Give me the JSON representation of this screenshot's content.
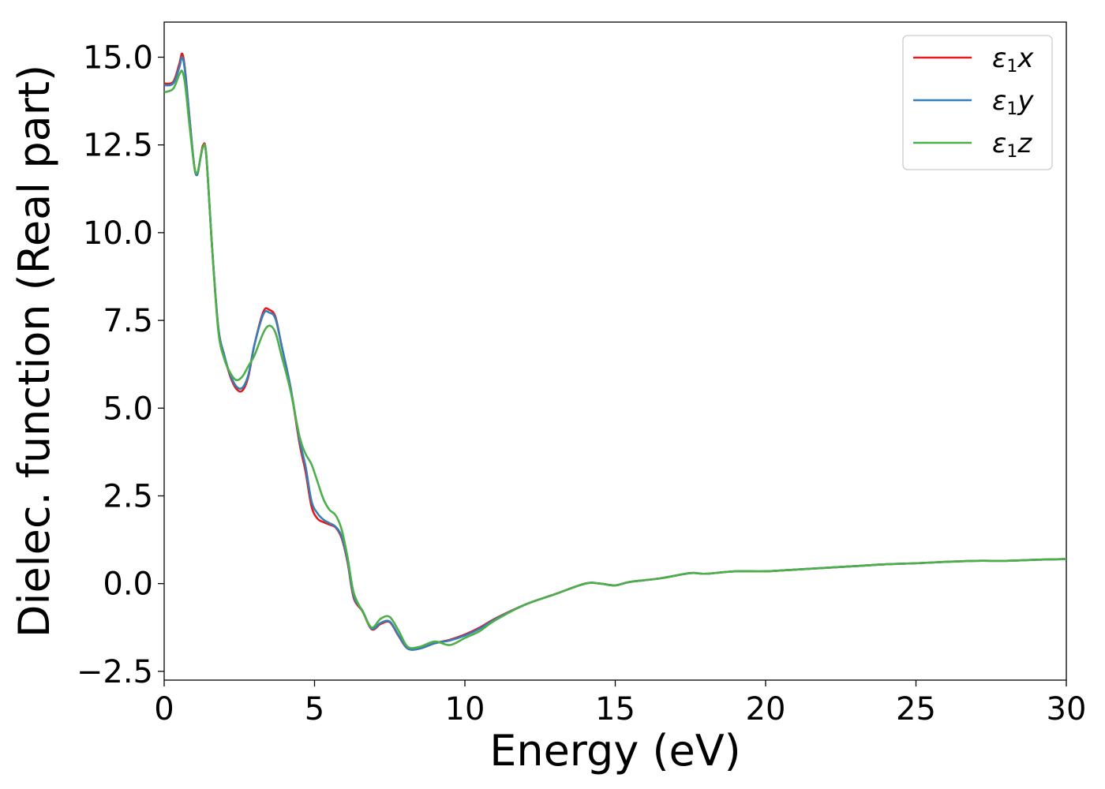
{
  "chart_data": {
    "type": "line",
    "title": "",
    "xlabel": "Energy (eV)",
    "ylabel": "Dielec. function (Real part)",
    "xlim": [
      0,
      30
    ],
    "ylim": [
      -2.75,
      16.0
    ],
    "xticks": [
      0,
      5,
      10,
      15,
      20,
      25,
      30
    ],
    "xtick_labels": [
      "0",
      "5",
      "10",
      "15",
      "20",
      "25",
      "30"
    ],
    "yticks": [
      -2.5,
      0.0,
      2.5,
      5.0,
      7.5,
      10.0,
      12.5,
      15.0
    ],
    "ytick_labels": [
      "−2.5",
      "0.0",
      "2.5",
      "5.0",
      "7.5",
      "10.0",
      "12.5",
      "15.0"
    ],
    "grid": false,
    "legend": "top-right",
    "series": [
      {
        "name": "ε₁x",
        "color": "#e41a1c",
        "points": [
          [
            0,
            14.25
          ],
          [
            0.3,
            14.3
          ],
          [
            0.5,
            14.8
          ],
          [
            0.6,
            15.1
          ],
          [
            0.7,
            14.6
          ],
          [
            0.85,
            13.2
          ],
          [
            1.0,
            11.9
          ],
          [
            1.1,
            11.65
          ],
          [
            1.2,
            12.1
          ],
          [
            1.3,
            12.5
          ],
          [
            1.4,
            12.2
          ],
          [
            1.6,
            9.5
          ],
          [
            1.8,
            7.3
          ],
          [
            2.0,
            6.5
          ],
          [
            2.2,
            5.9
          ],
          [
            2.4,
            5.55
          ],
          [
            2.6,
            5.5
          ],
          [
            2.8,
            5.9
          ],
          [
            3.0,
            6.8
          ],
          [
            3.3,
            7.75
          ],
          [
            3.5,
            7.8
          ],
          [
            3.7,
            7.6
          ],
          [
            3.9,
            6.8
          ],
          [
            4.2,
            5.6
          ],
          [
            4.5,
            4.0
          ],
          [
            4.7,
            3.2
          ],
          [
            4.9,
            2.2
          ],
          [
            5.1,
            1.85
          ],
          [
            5.3,
            1.75
          ],
          [
            5.5,
            1.68
          ],
          [
            5.7,
            1.6
          ],
          [
            5.9,
            1.3
          ],
          [
            6.1,
            0.6
          ],
          [
            6.3,
            -0.4
          ],
          [
            6.6,
            -0.8
          ],
          [
            6.9,
            -1.3
          ],
          [
            7.2,
            -1.15
          ],
          [
            7.5,
            -1.1
          ],
          [
            7.8,
            -1.5
          ],
          [
            8.1,
            -1.85
          ],
          [
            8.5,
            -1.85
          ],
          [
            9.0,
            -1.7
          ],
          [
            9.5,
            -1.6
          ],
          [
            10.0,
            -1.45
          ],
          [
            10.5,
            -1.25
          ],
          [
            11.0,
            -1.0
          ],
          [
            12.0,
            -0.6
          ],
          [
            13.0,
            -0.3
          ],
          [
            14.0,
            0.0
          ],
          [
            14.5,
            0.0
          ],
          [
            15.0,
            -0.05
          ],
          [
            15.5,
            0.05
          ],
          [
            16.5,
            0.15
          ],
          [
            17.5,
            0.3
          ],
          [
            18.0,
            0.28
          ],
          [
            19.0,
            0.35
          ],
          [
            20.0,
            0.35
          ],
          [
            21.0,
            0.4
          ],
          [
            22.0,
            0.45
          ],
          [
            23.0,
            0.5
          ],
          [
            24.0,
            0.55
          ],
          [
            25.0,
            0.58
          ],
          [
            26.0,
            0.62
          ],
          [
            27.0,
            0.65
          ],
          [
            28.0,
            0.65
          ],
          [
            29.0,
            0.68
          ],
          [
            30.0,
            0.7
          ]
        ]
      },
      {
        "name": "ε₁y",
        "color": "#377eb8",
        "points": [
          [
            0,
            14.2
          ],
          [
            0.3,
            14.25
          ],
          [
            0.5,
            14.7
          ],
          [
            0.6,
            15.0
          ],
          [
            0.7,
            14.55
          ],
          [
            0.85,
            13.2
          ],
          [
            1.0,
            11.9
          ],
          [
            1.1,
            11.65
          ],
          [
            1.2,
            12.1
          ],
          [
            1.3,
            12.45
          ],
          [
            1.4,
            12.2
          ],
          [
            1.6,
            9.5
          ],
          [
            1.8,
            7.3
          ],
          [
            2.0,
            6.5
          ],
          [
            2.2,
            5.95
          ],
          [
            2.4,
            5.62
          ],
          [
            2.6,
            5.58
          ],
          [
            2.8,
            5.95
          ],
          [
            3.0,
            6.8
          ],
          [
            3.3,
            7.68
          ],
          [
            3.5,
            7.72
          ],
          [
            3.7,
            7.55
          ],
          [
            3.9,
            6.8
          ],
          [
            4.2,
            5.6
          ],
          [
            4.5,
            4.1
          ],
          [
            4.7,
            3.35
          ],
          [
            4.9,
            2.35
          ],
          [
            5.1,
            2.0
          ],
          [
            5.3,
            1.82
          ],
          [
            5.5,
            1.72
          ],
          [
            5.7,
            1.62
          ],
          [
            5.9,
            1.35
          ],
          [
            6.1,
            0.65
          ],
          [
            6.3,
            -0.35
          ],
          [
            6.6,
            -0.78
          ],
          [
            6.9,
            -1.28
          ],
          [
            7.2,
            -1.12
          ],
          [
            7.5,
            -1.08
          ],
          [
            7.8,
            -1.48
          ],
          [
            8.1,
            -1.85
          ],
          [
            8.5,
            -1.85
          ],
          [
            9.0,
            -1.7
          ],
          [
            9.5,
            -1.62
          ],
          [
            10.0,
            -1.48
          ],
          [
            10.5,
            -1.28
          ],
          [
            11.0,
            -1.02
          ],
          [
            12.0,
            -0.6
          ],
          [
            13.0,
            -0.3
          ],
          [
            14.0,
            0.0
          ],
          [
            14.5,
            0.0
          ],
          [
            15.0,
            -0.05
          ],
          [
            15.5,
            0.05
          ],
          [
            16.5,
            0.15
          ],
          [
            17.5,
            0.3
          ],
          [
            18.0,
            0.28
          ],
          [
            19.0,
            0.35
          ],
          [
            20.0,
            0.35
          ],
          [
            21.0,
            0.4
          ],
          [
            22.0,
            0.45
          ],
          [
            23.0,
            0.5
          ],
          [
            24.0,
            0.55
          ],
          [
            25.0,
            0.58
          ],
          [
            26.0,
            0.62
          ],
          [
            27.0,
            0.65
          ],
          [
            28.0,
            0.65
          ],
          [
            29.0,
            0.68
          ],
          [
            30.0,
            0.7
          ]
        ]
      },
      {
        "name": "ε₁z",
        "color": "#4daf4a",
        "points": [
          [
            0,
            14.0
          ],
          [
            0.3,
            14.1
          ],
          [
            0.5,
            14.5
          ],
          [
            0.6,
            14.6
          ],
          [
            0.7,
            14.2
          ],
          [
            0.85,
            13.0
          ],
          [
            1.0,
            11.9
          ],
          [
            1.1,
            11.7
          ],
          [
            1.2,
            12.1
          ],
          [
            1.3,
            12.45
          ],
          [
            1.4,
            12.2
          ],
          [
            1.6,
            9.5
          ],
          [
            1.8,
            7.2
          ],
          [
            2.0,
            6.4
          ],
          [
            2.2,
            6.0
          ],
          [
            2.4,
            5.8
          ],
          [
            2.6,
            5.9
          ],
          [
            2.8,
            6.2
          ],
          [
            3.0,
            6.5
          ],
          [
            3.3,
            7.15
          ],
          [
            3.5,
            7.35
          ],
          [
            3.7,
            7.15
          ],
          [
            3.9,
            6.5
          ],
          [
            4.2,
            5.5
          ],
          [
            4.5,
            4.2
          ],
          [
            4.7,
            3.7
          ],
          [
            4.9,
            3.4
          ],
          [
            5.1,
            2.9
          ],
          [
            5.3,
            2.4
          ],
          [
            5.5,
            2.1
          ],
          [
            5.7,
            1.95
          ],
          [
            5.9,
            1.55
          ],
          [
            6.1,
            0.75
          ],
          [
            6.3,
            -0.25
          ],
          [
            6.6,
            -0.8
          ],
          [
            6.9,
            -1.25
          ],
          [
            7.2,
            -1.0
          ],
          [
            7.5,
            -0.95
          ],
          [
            7.8,
            -1.35
          ],
          [
            8.1,
            -1.8
          ],
          [
            8.5,
            -1.8
          ],
          [
            9.0,
            -1.65
          ],
          [
            9.5,
            -1.75
          ],
          [
            10.0,
            -1.55
          ],
          [
            10.5,
            -1.35
          ],
          [
            11.0,
            -1.05
          ],
          [
            12.0,
            -0.6
          ],
          [
            13.0,
            -0.3
          ],
          [
            14.0,
            0.0
          ],
          [
            14.5,
            0.0
          ],
          [
            15.0,
            -0.05
          ],
          [
            15.5,
            0.05
          ],
          [
            16.5,
            0.15
          ],
          [
            17.5,
            0.3
          ],
          [
            18.0,
            0.28
          ],
          [
            19.0,
            0.35
          ],
          [
            20.0,
            0.35
          ],
          [
            21.0,
            0.4
          ],
          [
            22.0,
            0.45
          ],
          [
            23.0,
            0.5
          ],
          [
            24.0,
            0.55
          ],
          [
            25.0,
            0.58
          ],
          [
            26.0,
            0.62
          ],
          [
            27.0,
            0.65
          ],
          [
            28.0,
            0.65
          ],
          [
            29.0,
            0.68
          ],
          [
            30.0,
            0.7
          ]
        ]
      }
    ]
  }
}
